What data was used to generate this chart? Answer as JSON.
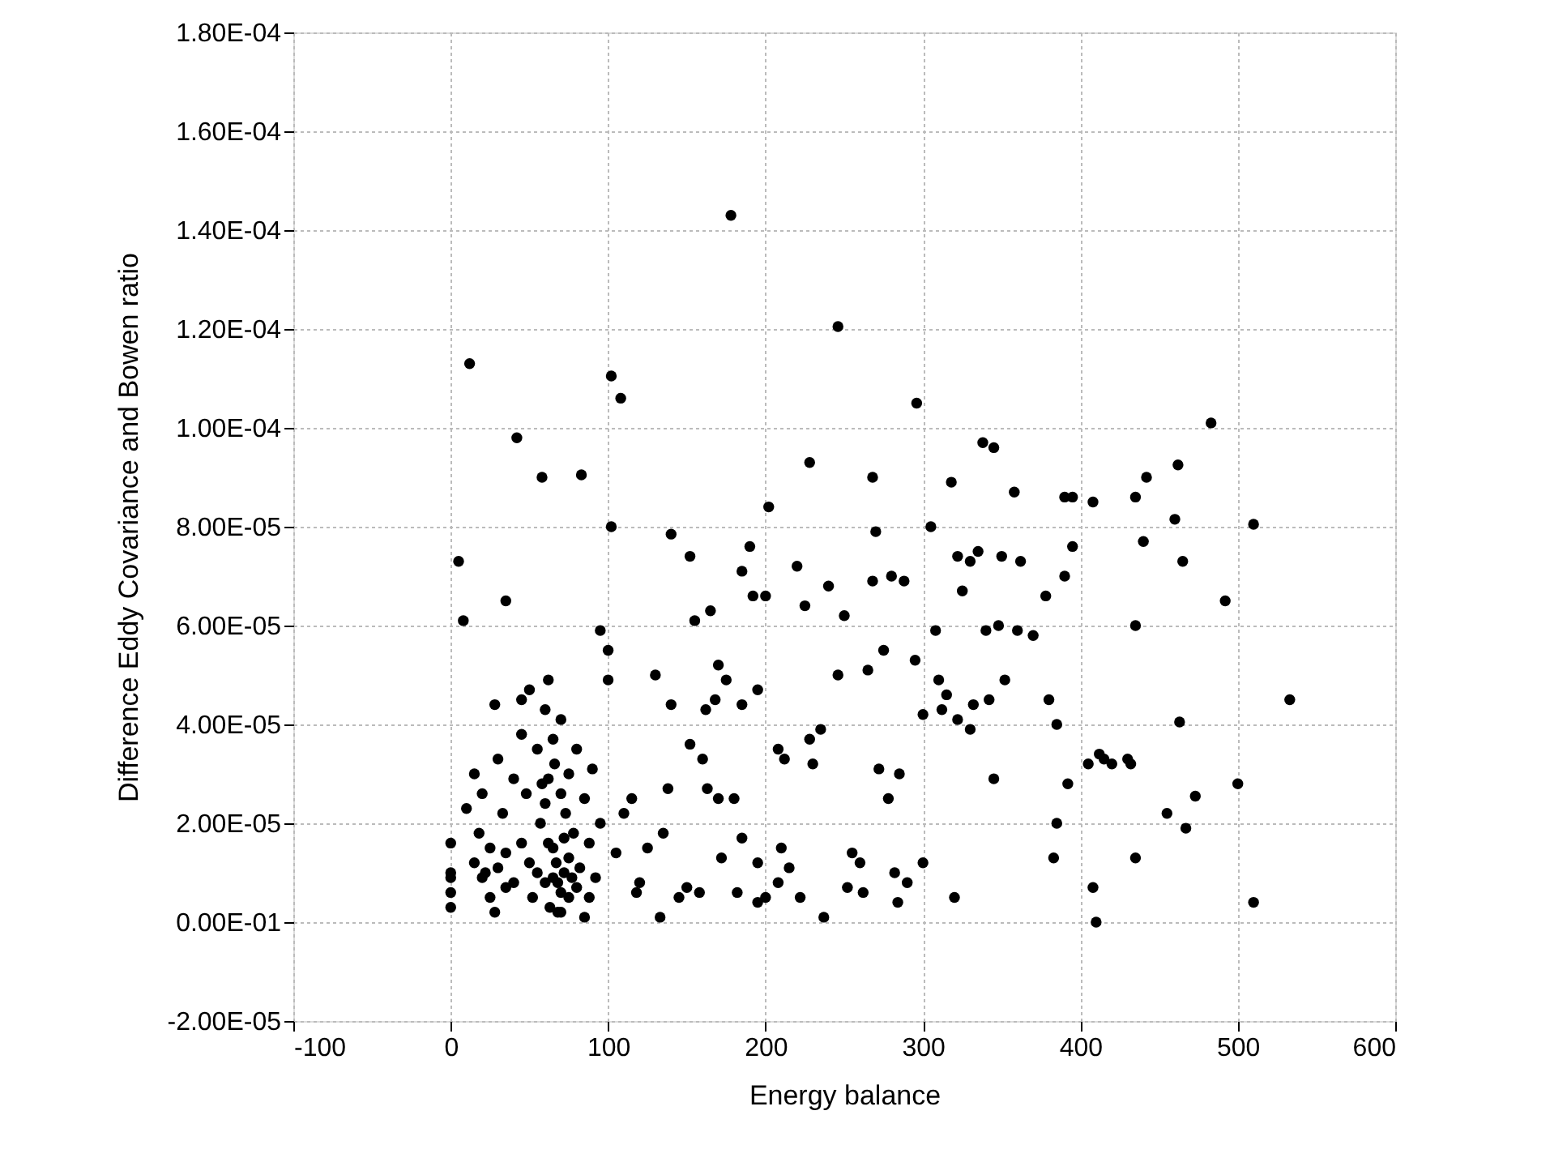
{
  "chart_data": {
    "type": "scatter",
    "xlabel": "Energy balance",
    "ylabel": "Difference Eddy Covariance and Bowen ratio",
    "xlim": [
      -100,
      600
    ],
    "xticks": [
      -100,
      0,
      100,
      200,
      300,
      400,
      500,
      600
    ],
    "ylim": [
      -2e-05,
      0.00018
    ],
    "yticks": [
      {
        "value": -2e-05,
        "label": "-2.00E-05"
      },
      {
        "value": 0,
        "label": "0.00E-01"
      },
      {
        "value": 2e-05,
        "label": "2.00E-05"
      },
      {
        "value": 4e-05,
        "label": "4.00E-05"
      },
      {
        "value": 6e-05,
        "label": "6.00E-05"
      },
      {
        "value": 8e-05,
        "label": "8.00E-05"
      },
      {
        "value": 0.0001,
        "label": "1.00E-04"
      },
      {
        "value": 0.00012,
        "label": "1.20E-04"
      },
      {
        "value": 0.00014,
        "label": "1.40E-04"
      },
      {
        "value": 0.00016,
        "label": "1.60E-04"
      },
      {
        "value": 0.00018,
        "label": "1.80E-04"
      }
    ],
    "grid": true,
    "marker": "circle",
    "series": [
      {
        "color": "#000000",
        "x": [
          0,
          0,
          0,
          0,
          0,
          5,
          8,
          12,
          10,
          15,
          20,
          18,
          22,
          25,
          28,
          28,
          30,
          33,
          35,
          35,
          40,
          42,
          45,
          45,
          48,
          50,
          50,
          55,
          57,
          58,
          60,
          62,
          62,
          65,
          65,
          68,
          68,
          70,
          70,
          72,
          75,
          75,
          78,
          80,
          80,
          83,
          85,
          85,
          88,
          90,
          92,
          95,
          95,
          100,
          100,
          102,
          102,
          108,
          105,
          110,
          115,
          118,
          120,
          125,
          130,
          133,
          135,
          138,
          140,
          140,
          145,
          150,
          152,
          152,
          155,
          158,
          160,
          162,
          163,
          165,
          168,
          170,
          170,
          172,
          175,
          178,
          180,
          182,
          185,
          185,
          185,
          190,
          192,
          195,
          195,
          195,
          200,
          200,
          202,
          208,
          208,
          210,
          212,
          215,
          220,
          222,
          225,
          228,
          228,
          230,
          235,
          237,
          240,
          246,
          246,
          250,
          252,
          255,
          260,
          262,
          265,
          268,
          268,
          270,
          272,
          275,
          278,
          280,
          282,
          284,
          285,
          288,
          290,
          295,
          296,
          300,
          300,
          305,
          308,
          310,
          312,
          315,
          318,
          320,
          322,
          322,
          325,
          330,
          330,
          332,
          335,
          338,
          340,
          342,
          345,
          345,
          348,
          350,
          352,
          358,
          360,
          362,
          370,
          378,
          380,
          383,
          385,
          385,
          390,
          390,
          392,
          395,
          395,
          405,
          408,
          408,
          410,
          412,
          415,
          420,
          430,
          432,
          435,
          435,
          435,
          440,
          442,
          455,
          460,
          462,
          463,
          465,
          467,
          473,
          483,
          492,
          500,
          510,
          510,
          533,
          55,
          60,
          62,
          65,
          67,
          70,
          72,
          73,
          75,
          77,
          60,
          40,
          45,
          30,
          25,
          20,
          15,
          35,
          52,
          82,
          88,
          58,
          66,
          63,
          70
        ],
        "values": [
          1.6e-05,
          1e-05,
          9e-06,
          6e-06,
          3e-06,
          7.3e-05,
          6.1e-05,
          0.000113,
          2.3e-05,
          3e-05,
          2.6e-05,
          1.8e-05,
          1e-05,
          5e-06,
          2e-06,
          4.4e-05,
          3.3e-05,
          2.2e-05,
          1.4e-05,
          6.5e-05,
          2.9e-05,
          9.8e-05,
          4.5e-05,
          3.8e-05,
          2.6e-05,
          1.2e-05,
          4.7e-05,
          3.5e-05,
          2e-05,
          9e-05,
          4.3e-05,
          4.9e-05,
          2.9e-05,
          3.7e-05,
          1.5e-05,
          8e-06,
          2e-06,
          2.6e-05,
          4.1e-05,
          1e-05,
          3e-05,
          5e-06,
          1.8e-05,
          3.5e-05,
          7e-06,
          9.05e-05,
          2.5e-05,
          1e-06,
          1.6e-05,
          3.1e-05,
          9e-06,
          5.9e-05,
          2e-05,
          5.5e-05,
          4.9e-05,
          8e-05,
          0.0001105,
          0.000106,
          1.4e-05,
          2.2e-05,
          2.5e-05,
          6e-06,
          8e-06,
          1.5e-05,
          5e-05,
          1e-06,
          1.8e-05,
          2.7e-05,
          7.85e-05,
          4.4e-05,
          5e-06,
          7e-06,
          7.4e-05,
          3.6e-05,
          6.1e-05,
          6e-06,
          3.3e-05,
          4.3e-05,
          2.7e-05,
          6.3e-05,
          4.5e-05,
          2.5e-05,
          5.2e-05,
          1.3e-05,
          4.9e-05,
          0.000143,
          2.5e-05,
          6e-06,
          7.1e-05,
          4.4e-05,
          1.7e-05,
          7.6e-05,
          6.6e-05,
          1.2e-05,
          4.7e-05,
          4e-06,
          6.6e-05,
          5e-06,
          8.4e-05,
          3.5e-05,
          8e-06,
          1.5e-05,
          3.3e-05,
          1.1e-05,
          7.2e-05,
          5e-06,
          6.4e-05,
          9.3e-05,
          3.7e-05,
          3.2e-05,
          3.9e-05,
          1e-06,
          6.8e-05,
          0.0001205,
          5e-05,
          6.2e-05,
          7e-06,
          1.4e-05,
          1.2e-05,
          6e-06,
          5.1e-05,
          9e-05,
          6.9e-05,
          7.9e-05,
          3.1e-05,
          5.5e-05,
          2.5e-05,
          7e-05,
          1e-05,
          4e-06,
          3e-05,
          6.9e-05,
          8e-06,
          5.3e-05,
          0.000105,
          1.2e-05,
          4.2e-05,
          8e-05,
          5.9e-05,
          4.9e-05,
          4.3e-05,
          4.6e-05,
          8.9e-05,
          5e-06,
          7.4e-05,
          4.1e-05,
          6.7e-05,
          3.9e-05,
          7.3e-05,
          4.4e-05,
          7.5e-05,
          9.7e-05,
          5.9e-05,
          4.5e-05,
          9.6e-05,
          2.9e-05,
          6e-05,
          7.4e-05,
          4.9e-05,
          8.7e-05,
          5.9e-05,
          7.3e-05,
          5.8e-05,
          6.6e-05,
          4.5e-05,
          1.3e-05,
          4e-05,
          2e-05,
          8.6e-05,
          7e-05,
          2.8e-05,
          8.6e-05,
          7.6e-05,
          3.2e-05,
          8.5e-05,
          7e-06,
          0.0,
          3.4e-05,
          3.3e-05,
          3.2e-05,
          3.3e-05,
          3.2e-05,
          8.6e-05,
          6e-05,
          1.3e-05,
          7.7e-05,
          9e-05,
          2.2e-05,
          8.15e-05,
          9.25e-05,
          4.05e-05,
          7.3e-05,
          1.9e-05,
          2.55e-05,
          0.000101,
          6.5e-05,
          2.8e-05,
          8.05e-05,
          4e-06,
          4.5e-05,
          1e-05,
          8e-06,
          1.6e-05,
          9e-06,
          1.2e-05,
          6e-06,
          1.7e-05,
          2.2e-05,
          1.3e-05,
          9e-06,
          2.4e-05,
          8e-06,
          1.6e-05,
          1.1e-05,
          1.5e-05,
          9e-06,
          1.2e-05,
          7e-06,
          5e-06,
          1.1e-05,
          5e-06,
          2.8e-05,
          3.2e-05,
          3e-06,
          2e-06
        ]
      }
    ]
  }
}
